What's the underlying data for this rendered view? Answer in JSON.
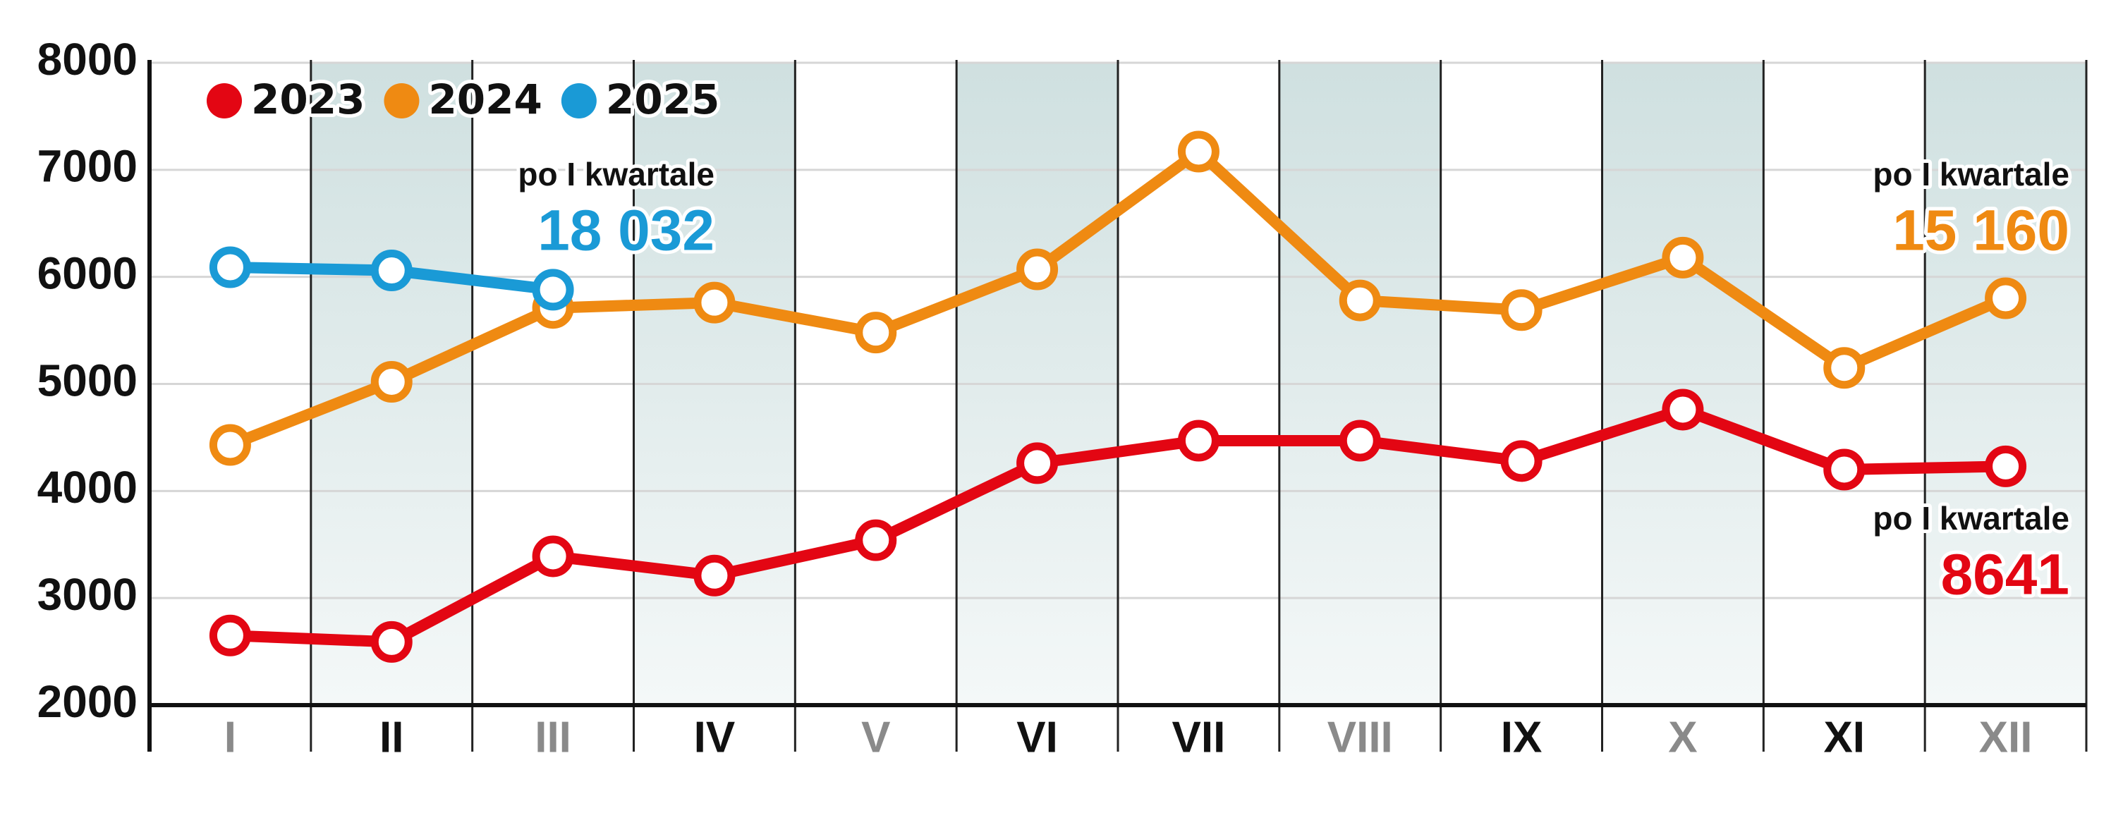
{
  "chart_data": {
    "type": "line",
    "categories": [
      "I",
      "II",
      "III",
      "IV",
      "V",
      "VI",
      "VII",
      "VIII",
      "IX",
      "X",
      "XI",
      "XII"
    ],
    "category_colors": [
      "#8a8a8a",
      "#111111",
      "#8a8a8a",
      "#111111",
      "#8a8a8a",
      "#111111",
      "#111111",
      "#8a8a8a",
      "#111111",
      "#8a8a8a",
      "#111111",
      "#8a8a8a"
    ],
    "series": [
      {
        "name": "2023",
        "color": "#e30613",
        "values": [
          2650,
          2590,
          3390,
          3210,
          3540,
          4260,
          4470,
          4470,
          4280,
          4760,
          4200,
          4230
        ]
      },
      {
        "name": "2024",
        "color": "#ef8a12",
        "values": [
          4430,
          5020,
          5710,
          5760,
          5480,
          6070,
          7170,
          5780,
          5690,
          6180,
          5150,
          5800
        ]
      },
      {
        "name": "2025",
        "color": "#1a9ad6",
        "values": [
          6090,
          6060,
          5880,
          null,
          null,
          null,
          null,
          null,
          null,
          null,
          null,
          null
        ]
      }
    ],
    "ylim": [
      2000,
      8000
    ],
    "yticks": [
      2000,
      3000,
      4000,
      5000,
      6000,
      7000,
      8000
    ],
    "grid": true,
    "legend": "top-left",
    "annotations": [
      {
        "text": "po I kwartale",
        "value": "18 032",
        "color": "#1a9ad6"
      },
      {
        "text": "po I kwartale",
        "value": "15 160",
        "color": "#ef8a12"
      },
      {
        "text": "po I kwartale",
        "value": "8641",
        "color": "#e30613"
      }
    ]
  }
}
